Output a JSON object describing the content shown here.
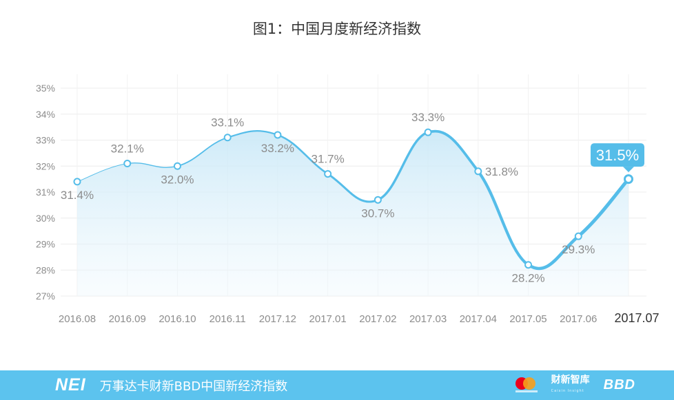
{
  "title": "图1：中国月度新经济指数",
  "chart_data": {
    "type": "line",
    "title": "图1：中国月度新经济指数",
    "categories": [
      "2016.08",
      "2016.09",
      "2016.10",
      "2016.11",
      "2017.12",
      "2017.01",
      "2017.02",
      "2017.03",
      "2017.04",
      "2017.05",
      "2017.06",
      "2017.07"
    ],
    "values": [
      31.4,
      32.1,
      32.0,
      33.1,
      33.2,
      31.7,
      30.7,
      33.3,
      31.8,
      28.2,
      29.3,
      31.5
    ],
    "value_labels": [
      "31.4%",
      "32.1%",
      "32.0%",
      "33.1%",
      "33.2%",
      "31.7%",
      "30.7%",
      "33.3%",
      "31.8%",
      "28.2%",
      "29.3%",
      "31.5%"
    ],
    "y_ticks": [
      "27%",
      "28%",
      "29%",
      "30%",
      "31%",
      "32%",
      "33%",
      "34%",
      "35%"
    ],
    "ylim": [
      27,
      35
    ],
    "xlabel": "",
    "ylabel": "",
    "grid": true,
    "highlight_label": "31.5%",
    "colors": {
      "line": "#55bde9",
      "fill_top": "#d6eef9",
      "point_fill": "#ffffff",
      "callout": "#55bde9",
      "grid": "#ececec"
    }
  },
  "footer": {
    "logo": "NEI",
    "title": "万事达卡财新BBD中国新经济指数",
    "brands": {
      "caixin": "财新智库",
      "caixin_sub": "Caixin Insight",
      "bbd": "BBD"
    },
    "icons": [
      "mastercard-icon"
    ]
  }
}
